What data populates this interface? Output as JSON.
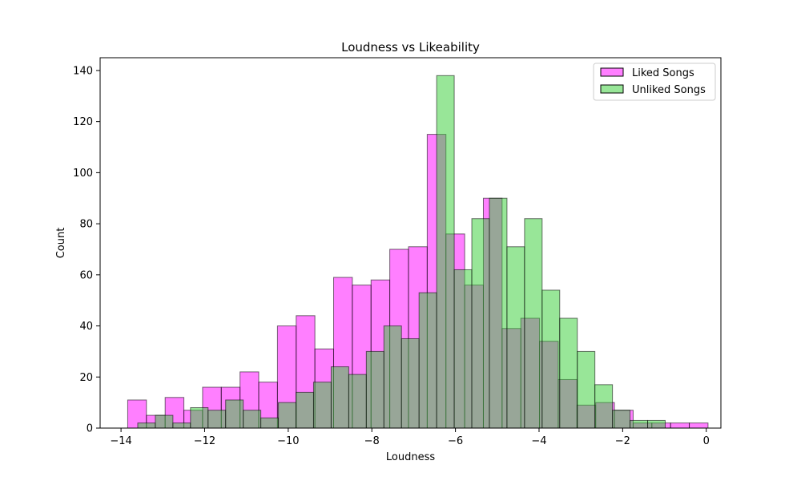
{
  "chart_data": {
    "type": "bar",
    "title": "Loudness vs Likeability",
    "xlabel": "Loudness",
    "ylabel": "Count",
    "xlim": [
      -14.5,
      0.35
    ],
    "ylim": [
      0,
      145
    ],
    "xticks": [
      -14,
      -12,
      -10,
      -8,
      -6,
      -4,
      -2,
      0
    ],
    "xtick_labels": [
      "−14",
      "−12",
      "−10",
      "−8",
      "−6",
      "−4",
      "−2",
      "0"
    ],
    "yticks": [
      0,
      20,
      40,
      60,
      80,
      100,
      120,
      140
    ],
    "ytick_labels": [
      "0",
      "20",
      "40",
      "60",
      "80",
      "100",
      "120",
      "140"
    ],
    "grid": false,
    "legend_position": "top-right",
    "series": [
      {
        "name": "Liked Songs",
        "color": "#ff00ff",
        "alpha": 0.5,
        "edge_color": "#000000",
        "bin_start": -13.84,
        "bin_width": 0.4478,
        "values": [
          11,
          5,
          12,
          7,
          16,
          16,
          22,
          18,
          40,
          44,
          31,
          59,
          56,
          58,
          70,
          71,
          115,
          76,
          56,
          90,
          39,
          43,
          34,
          19,
          9,
          10,
          7,
          2,
          2,
          2,
          2
        ]
      },
      {
        "name": "Unliked Songs",
        "color": "#32cd32",
        "alpha": 0.5,
        "edge_color": "#000000",
        "bin_start": -13.6,
        "bin_width": 0.4206,
        "values": [
          2,
          5,
          2,
          8,
          7,
          11,
          7,
          4,
          10,
          14,
          18,
          24,
          21,
          30,
          40,
          35,
          53,
          138,
          62,
          82,
          90,
          71,
          82,
          54,
          43,
          30,
          17,
          7,
          3,
          3
        ]
      }
    ]
  }
}
